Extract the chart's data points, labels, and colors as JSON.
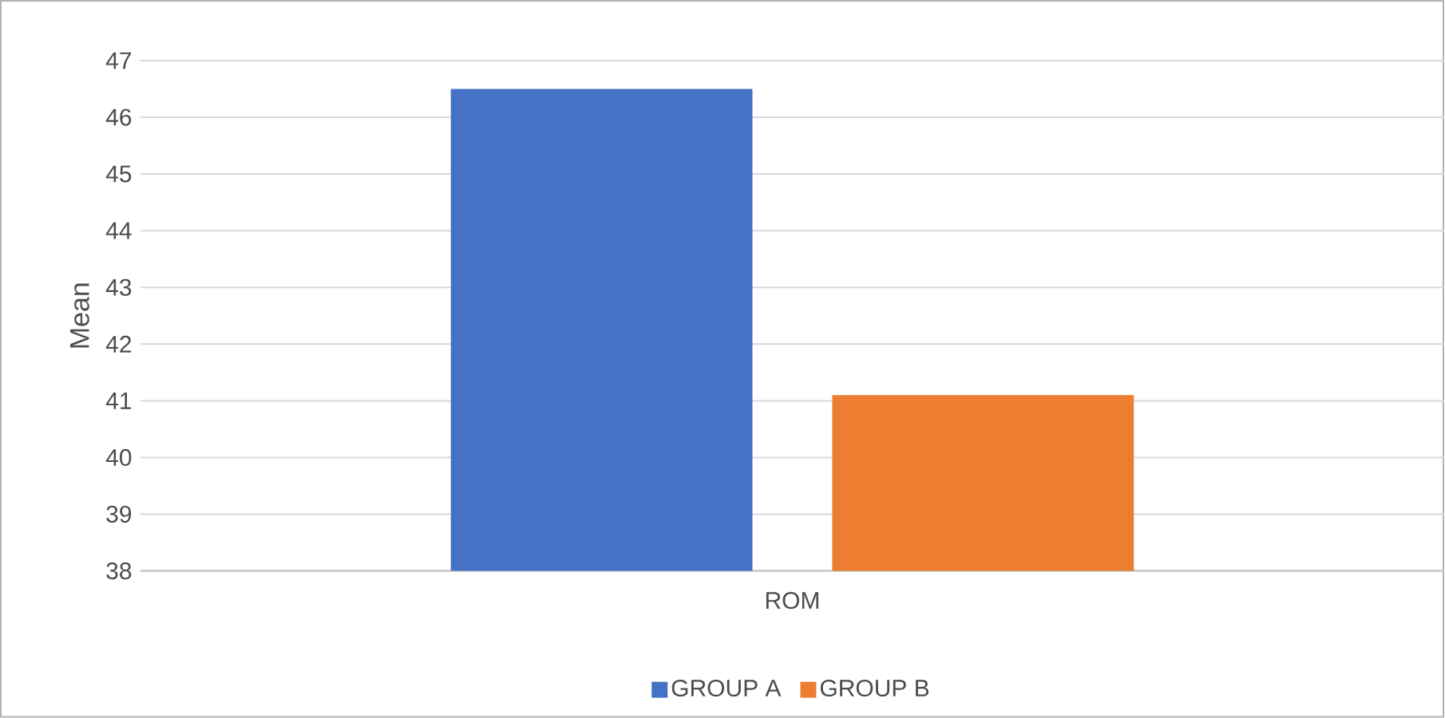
{
  "chart_data": {
    "type": "bar",
    "ylabel": "Mean",
    "categories": [
      "ROM"
    ],
    "series": [
      {
        "name": "GROUP A",
        "color": "#4472c4",
        "values": [
          46.5
        ]
      },
      {
        "name": "GROUP B",
        "color": "#ed7d31",
        "values": [
          41.1
        ]
      }
    ],
    "ylim": [
      38,
      47
    ],
    "yticks": [
      38,
      39,
      40,
      41,
      42,
      43,
      44,
      45,
      46,
      47
    ],
    "grid": "y",
    "legend": "bottom"
  }
}
